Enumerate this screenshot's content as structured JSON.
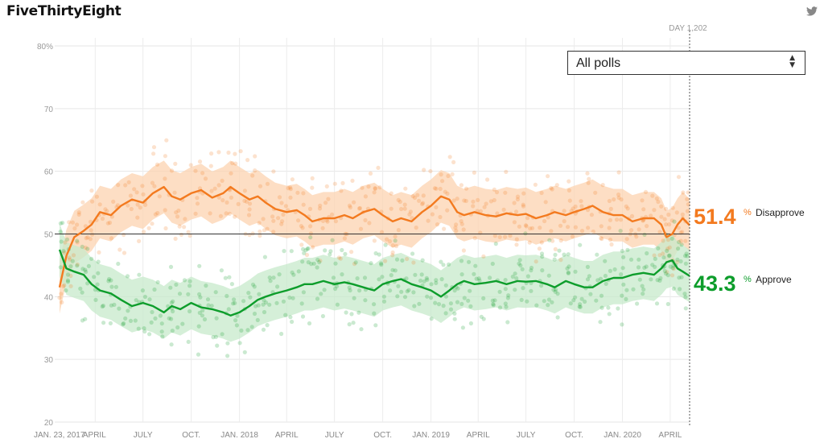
{
  "brand": "FiveThirtyEight",
  "icons": {
    "twitter": "twitter-bird-icon",
    "select_arrows": "up-down-arrows-icon"
  },
  "poll_filter": {
    "selected": "All polls"
  },
  "date_marker": "DAY 1,202",
  "summary": {
    "disapprove": {
      "value": "51.4",
      "unit": "%",
      "label": "Disapprove",
      "color": "#f37a1f"
    },
    "approve": {
      "value": "43.3",
      "unit": "%",
      "label": "Approve",
      "color": "#0d9d2b"
    }
  },
  "chart_data": {
    "type": "line",
    "title": "",
    "xlabel": "",
    "ylabel": "",
    "ylim": [
      20,
      80
    ],
    "x_range": [
      "2017-01-23",
      "2020-05-08"
    ],
    "y_ticks": [
      {
        "v": 20,
        "label": "20"
      },
      {
        "v": 30,
        "label": "30"
      },
      {
        "v": 40,
        "label": "40"
      },
      {
        "v": 50,
        "label": "50"
      },
      {
        "v": 60,
        "label": "60"
      },
      {
        "v": 70,
        "label": "70"
      },
      {
        "v": 80,
        "label": "80%"
      }
    ],
    "x_ticks": [
      {
        "date": "2017-01-23",
        "label": "JAN. 23, 2017"
      },
      {
        "date": "2017-04-01",
        "label": "APRIL"
      },
      {
        "date": "2017-07-01",
        "label": "JULY"
      },
      {
        "date": "2017-10-01",
        "label": "OCT."
      },
      {
        "date": "2018-01-01",
        "label": "JAN. 2018"
      },
      {
        "date": "2018-04-01",
        "label": "APRIL"
      },
      {
        "date": "2018-07-01",
        "label": "JULY"
      },
      {
        "date": "2018-10-01",
        "label": "OCT."
      },
      {
        "date": "2019-01-01",
        "label": "JAN. 2019"
      },
      {
        "date": "2019-04-01",
        "label": "APRIL"
      },
      {
        "date": "2019-07-01",
        "label": "JULY"
      },
      {
        "date": "2019-10-01",
        "label": "OCT."
      },
      {
        "date": "2020-01-01",
        "label": "JAN. 2020"
      },
      {
        "date": "2020-04-01",
        "label": "APRIL"
      }
    ],
    "reference_line": 50,
    "grid": true,
    "series": [
      {
        "name": "Disapprove",
        "color": "#f37a1f",
        "band_color": "#fcd3b0",
        "points": [
          [
            "2017-01-23",
            41.5
          ],
          [
            "2017-02-05",
            46.5
          ],
          [
            "2017-02-20",
            49.5
          ],
          [
            "2017-03-10",
            50.5
          ],
          [
            "2017-03-25",
            51.5
          ],
          [
            "2017-04-10",
            53.5
          ],
          [
            "2017-05-01",
            53.0
          ],
          [
            "2017-05-20",
            54.5
          ],
          [
            "2017-06-10",
            55.5
          ],
          [
            "2017-07-01",
            55.0
          ],
          [
            "2017-07-20",
            56.5
          ],
          [
            "2017-08-10",
            57.5
          ],
          [
            "2017-08-25",
            56.0
          ],
          [
            "2017-09-10",
            55.5
          ],
          [
            "2017-10-01",
            56.5
          ],
          [
            "2017-10-20",
            57.0
          ],
          [
            "2017-11-10",
            55.8
          ],
          [
            "2017-12-01",
            56.5
          ],
          [
            "2017-12-15",
            57.5
          ],
          [
            "2018-01-01",
            56.5
          ],
          [
            "2018-01-20",
            55.5
          ],
          [
            "2018-02-05",
            56.0
          ],
          [
            "2018-02-20",
            55.0
          ],
          [
            "2018-03-10",
            54.0
          ],
          [
            "2018-04-01",
            53.5
          ],
          [
            "2018-04-20",
            53.8
          ],
          [
            "2018-05-05",
            53.0
          ],
          [
            "2018-05-20",
            52.0
          ],
          [
            "2018-06-10",
            52.5
          ],
          [
            "2018-07-01",
            52.5
          ],
          [
            "2018-07-20",
            53.0
          ],
          [
            "2018-08-05",
            52.5
          ],
          [
            "2018-08-25",
            53.5
          ],
          [
            "2018-09-15",
            54.0
          ],
          [
            "2018-10-01",
            53.0
          ],
          [
            "2018-10-20",
            52.0
          ],
          [
            "2018-11-05",
            52.5
          ],
          [
            "2018-11-25",
            52.0
          ],
          [
            "2018-12-15",
            53.5
          ],
          [
            "2019-01-01",
            54.5
          ],
          [
            "2019-01-20",
            56.0
          ],
          [
            "2019-02-05",
            55.5
          ],
          [
            "2019-02-20",
            53.5
          ],
          [
            "2019-03-05",
            53.0
          ],
          [
            "2019-03-25",
            53.5
          ],
          [
            "2019-04-15",
            53.0
          ],
          [
            "2019-05-05",
            52.8
          ],
          [
            "2019-05-25",
            53.3
          ],
          [
            "2019-06-15",
            53.0
          ],
          [
            "2019-07-01",
            53.2
          ],
          [
            "2019-07-20",
            52.5
          ],
          [
            "2019-08-10",
            53.0
          ],
          [
            "2019-08-25",
            53.5
          ],
          [
            "2019-09-15",
            53.0
          ],
          [
            "2019-10-01",
            53.5
          ],
          [
            "2019-10-20",
            54.0
          ],
          [
            "2019-11-05",
            54.5
          ],
          [
            "2019-11-25",
            53.5
          ],
          [
            "2019-12-15",
            53.0
          ],
          [
            "2020-01-01",
            53.0
          ],
          [
            "2020-01-20",
            52.0
          ],
          [
            "2020-02-10",
            52.5
          ],
          [
            "2020-03-01",
            52.5
          ],
          [
            "2020-03-15",
            51.5
          ],
          [
            "2020-03-25",
            49.5
          ],
          [
            "2020-04-05",
            50.0
          ],
          [
            "2020-04-15",
            51.5
          ],
          [
            "2020-04-25",
            52.5
          ],
          [
            "2020-05-08",
            51.4
          ]
        ]
      },
      {
        "name": "Approve",
        "color": "#0d9d2b",
        "band_color": "#c7e9cb",
        "points": [
          [
            "2017-01-23",
            47.5
          ],
          [
            "2017-02-05",
            44.5
          ],
          [
            "2017-02-20",
            44.0
          ],
          [
            "2017-03-10",
            43.5
          ],
          [
            "2017-03-25",
            42.0
          ],
          [
            "2017-04-10",
            41.0
          ],
          [
            "2017-05-01",
            40.5
          ],
          [
            "2017-05-20",
            39.5
          ],
          [
            "2017-06-10",
            38.5
          ],
          [
            "2017-07-01",
            39.0
          ],
          [
            "2017-07-20",
            38.5
          ],
          [
            "2017-08-10",
            37.5
          ],
          [
            "2017-08-25",
            38.5
          ],
          [
            "2017-09-10",
            38.0
          ],
          [
            "2017-10-01",
            39.0
          ],
          [
            "2017-10-20",
            38.3
          ],
          [
            "2017-11-10",
            38.0
          ],
          [
            "2017-12-01",
            37.5
          ],
          [
            "2017-12-15",
            37.0
          ],
          [
            "2018-01-01",
            37.5
          ],
          [
            "2018-01-20",
            38.5
          ],
          [
            "2018-02-05",
            39.5
          ],
          [
            "2018-02-20",
            40.0
          ],
          [
            "2018-03-10",
            40.5
          ],
          [
            "2018-04-01",
            41.0
          ],
          [
            "2018-04-20",
            41.5
          ],
          [
            "2018-05-05",
            42.0
          ],
          [
            "2018-05-20",
            42.0
          ],
          [
            "2018-06-10",
            42.5
          ],
          [
            "2018-07-01",
            42.0
          ],
          [
            "2018-07-20",
            42.3
          ],
          [
            "2018-08-05",
            42.0
          ],
          [
            "2018-08-25",
            41.5
          ],
          [
            "2018-09-15",
            41.0
          ],
          [
            "2018-10-01",
            42.0
          ],
          [
            "2018-10-20",
            42.5
          ],
          [
            "2018-11-05",
            42.8
          ],
          [
            "2018-11-25",
            42.0
          ],
          [
            "2018-12-15",
            41.5
          ],
          [
            "2019-01-01",
            41.0
          ],
          [
            "2019-01-20",
            40.0
          ],
          [
            "2019-02-05",
            41.0
          ],
          [
            "2019-02-20",
            42.0
          ],
          [
            "2019-03-05",
            42.5
          ],
          [
            "2019-03-25",
            42.0
          ],
          [
            "2019-04-15",
            42.2
          ],
          [
            "2019-05-05",
            42.5
          ],
          [
            "2019-05-25",
            42.0
          ],
          [
            "2019-06-15",
            42.5
          ],
          [
            "2019-07-01",
            42.4
          ],
          [
            "2019-07-20",
            42.5
          ],
          [
            "2019-08-10",
            42.0
          ],
          [
            "2019-08-25",
            41.5
          ],
          [
            "2019-09-15",
            42.5
          ],
          [
            "2019-10-01",
            42.0
          ],
          [
            "2019-10-20",
            41.5
          ],
          [
            "2019-11-05",
            41.5
          ],
          [
            "2019-11-25",
            42.5
          ],
          [
            "2019-12-15",
            43.0
          ],
          [
            "2020-01-01",
            43.0
          ],
          [
            "2020-01-20",
            43.5
          ],
          [
            "2020-02-10",
            43.8
          ],
          [
            "2020-03-01",
            43.5
          ],
          [
            "2020-03-15",
            44.5
          ],
          [
            "2020-03-25",
            45.5
          ],
          [
            "2020-04-05",
            45.8
          ],
          [
            "2020-04-15",
            44.5
          ],
          [
            "2020-04-25",
            44.0
          ],
          [
            "2020-05-08",
            43.3
          ]
        ]
      }
    ]
  }
}
